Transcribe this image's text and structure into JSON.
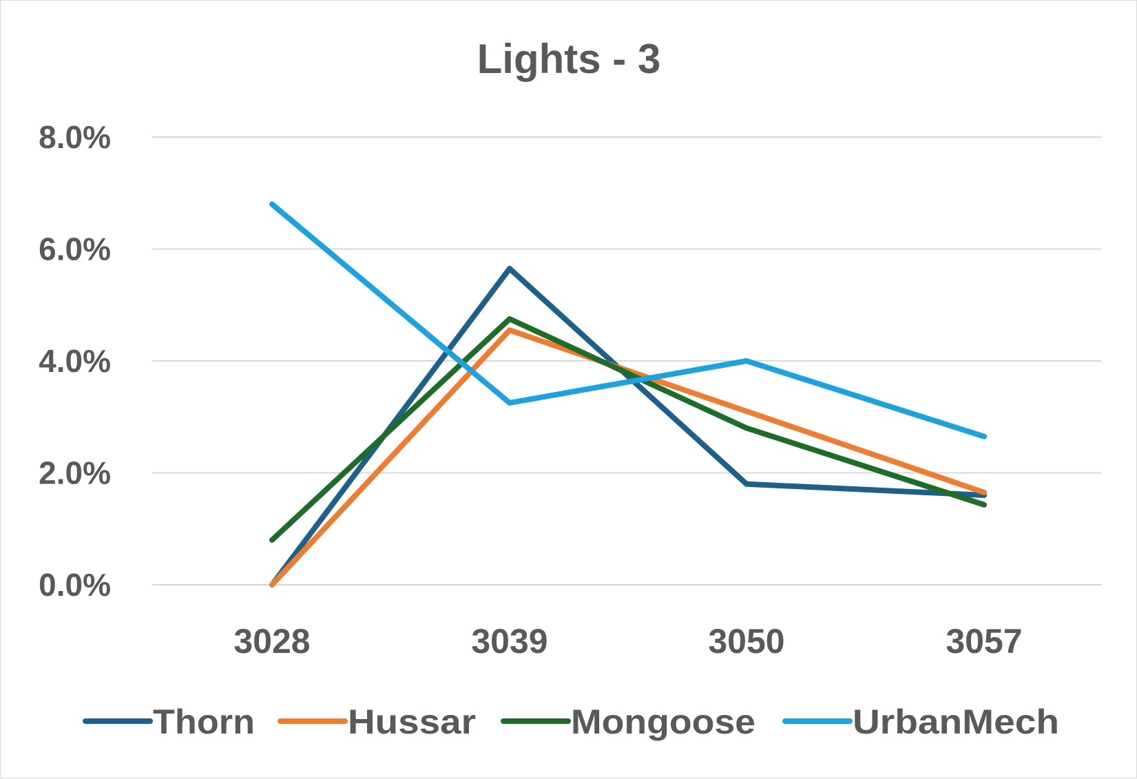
{
  "chart_data": {
    "type": "line",
    "title": "Lights - 3",
    "categories": [
      "3028",
      "3039",
      "3050",
      "3057"
    ],
    "ylim": [
      0,
      0.08
    ],
    "yticks": [
      0,
      0.02,
      0.04,
      0.06,
      0.08
    ],
    "ytick_labels": [
      "0.0%",
      "2.0%",
      "4.0%",
      "6.0%",
      "8.0%"
    ],
    "grid": true,
    "legend_position": "bottom",
    "series": [
      {
        "name": "Thorn",
        "color": "#1f5f8b",
        "values": [
          0.0,
          0.0565,
          0.018,
          0.016
        ]
      },
      {
        "name": "Hussar",
        "color": "#ed7d31",
        "values": [
          0.0,
          0.0455,
          0.031,
          0.0165
        ]
      },
      {
        "name": "Mongoose",
        "color": "#1e6b2a",
        "values": [
          0.008,
          0.0475,
          0.028,
          0.0143
        ]
      },
      {
        "name": "UrbanMech",
        "color": "#1ea1dc",
        "values": [
          0.068,
          0.0325,
          0.04,
          0.0265
        ]
      }
    ]
  }
}
